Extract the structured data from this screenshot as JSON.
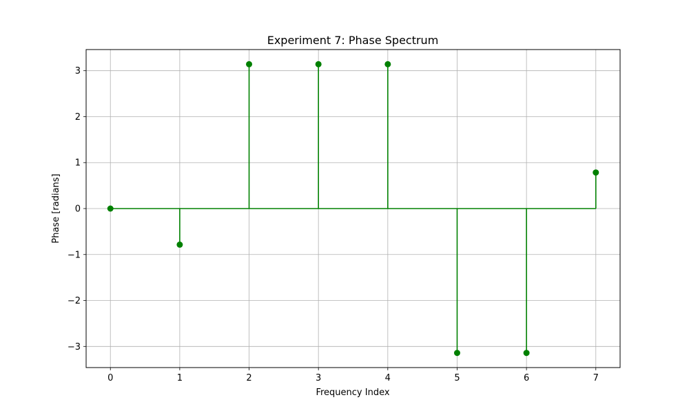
{
  "chart_data": {
    "type": "stem",
    "title": "Experiment 7: Phase Spectrum",
    "xlabel": "Frequency Index",
    "ylabel": "Phase [radians]",
    "x": [
      0,
      1,
      2,
      3,
      4,
      5,
      6,
      7
    ],
    "values": [
      0,
      -0.785,
      3.1416,
      3.1416,
      3.1416,
      -3.1416,
      -3.1416,
      0.785
    ],
    "xlim": [
      -0.35,
      7.35
    ],
    "ylim": [
      -3.46,
      3.46
    ],
    "xticks": [
      0,
      1,
      2,
      3,
      4,
      5,
      6,
      7
    ],
    "xtick_labels": [
      "0",
      "1",
      "2",
      "3",
      "4",
      "5",
      "6",
      "7"
    ],
    "yticks": [
      -3,
      -2,
      -1,
      0,
      1,
      2,
      3
    ],
    "ytick_labels": [
      "−3",
      "−2",
      "−1",
      "0",
      "1",
      "2",
      "3"
    ],
    "grid": true,
    "baseline": 0,
    "color": "#008000",
    "grid_color": "#b0b0b0"
  }
}
